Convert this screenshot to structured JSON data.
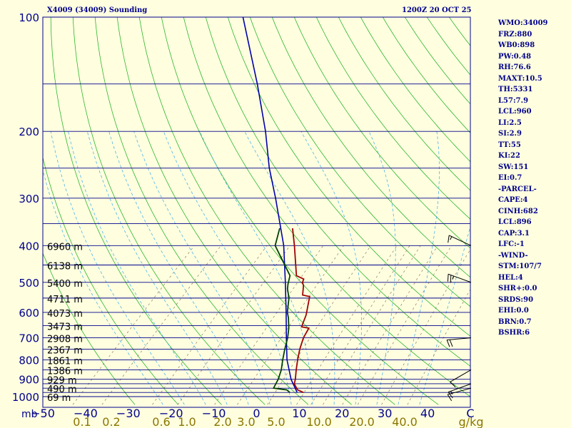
{
  "header": {
    "left_title": "X4009 (34009) Sounding",
    "right_title": "1200Z 20 OCT 25"
  },
  "indices": [
    "WMO:34009",
    "FRZ:880",
    "WB0:898",
    "PW:0.48",
    "RH:76.6",
    "MAXT:10.5",
    "TH:5331",
    "L57:7.9",
    "LCL:960",
    "LI:2.5",
    "SI:2.9",
    "TT:55",
    "KI:22",
    "SW:151",
    "EI:0.7",
    "-PARCEL-",
    "CAPE:4",
    "CINH:682",
    "LCL:896",
    "CAP:3.1",
    "LFC:-1",
    "-WIND-",
    "STM:107/7",
    "HEL:4",
    "SHR+:0.0",
    "SRDS:90",
    "EHI:0.0",
    "BRN:0.7",
    "BSHR:6"
  ],
  "colors": {
    "background": "#ffffe0",
    "frame": "#00008b",
    "isobar": "#00008b",
    "dry_adiabat": "#2db52d",
    "moist_adiabat": "#4fb4e6",
    "mixing_ratio": "#8c7a62",
    "temperature": "#a00000",
    "dewpoint": "#004000",
    "parcel": "#0000aa",
    "axis_text": "#00008b",
    "mixing_label": "#8b7500",
    "height_label": "#000000"
  },
  "chart_data": {
    "type": "skew-t",
    "title": "X4009 (34009) Sounding",
    "xlabel": "C",
    "pressure_unit": "mb",
    "mixing_ratio_unit": "g/kg",
    "ylim_mb": [
      1000,
      100
    ],
    "xlim_c": [
      -50,
      50
    ],
    "pressure_ticks": [
      100,
      200,
      300,
      400,
      500,
      600,
      700,
      800,
      900,
      1000
    ],
    "isobars_mb": [
      100,
      150,
      200,
      250,
      300,
      350,
      400,
      450,
      500,
      550,
      600,
      650,
      700,
      750,
      800,
      850,
      900,
      925,
      950,
      975,
      1000
    ],
    "temperature_ticks": [
      -50,
      -40,
      -30,
      -20,
      -10,
      0,
      10,
      20,
      30,
      40,
      "C"
    ],
    "mixing_ratio_ticks": [
      "0.1",
      "0.2",
      "0.6",
      "1.0",
      "2.0",
      "3.0",
      "5.0",
      "10.0",
      "20.0",
      "40.0",
      "g/kg"
    ],
    "heights": [
      {
        "p": 400,
        "label": "6960 m"
      },
      {
        "p": 450,
        "label": "6138 m"
      },
      {
        "p": 500,
        "label": "5400 m"
      },
      {
        "p": 550,
        "label": "4711 m"
      },
      {
        "p": 600,
        "label": "4073 m"
      },
      {
        "p": 650,
        "label": "3473 m"
      },
      {
        "p": 700,
        "label": "2908 m"
      },
      {
        "p": 750,
        "label": "2367 m"
      },
      {
        "p": 800,
        "label": "1861 m"
      },
      {
        "p": 850,
        "label": "1386 m"
      },
      {
        "p": 900,
        "label": "929 m"
      },
      {
        "p": 950,
        "label": "490 m"
      },
      {
        "p": 1000,
        "label": "69 m"
      }
    ],
    "temperature": [
      {
        "p": 975,
        "t": 10.0
      },
      {
        "p": 960,
        "t": 8.0
      },
      {
        "p": 925,
        "t": 5.8
      },
      {
        "p": 900,
        "t": 5.0
      },
      {
        "p": 850,
        "t": 3.0
      },
      {
        "p": 800,
        "t": 1.0
      },
      {
        "p": 750,
        "t": -1.0
      },
      {
        "p": 700,
        "t": -2.8
      },
      {
        "p": 660,
        "t": -3.8
      },
      {
        "p": 655,
        "t": -5.8
      },
      {
        "p": 610,
        "t": -7.5
      },
      {
        "p": 600,
        "t": -8.0
      },
      {
        "p": 545,
        "t": -11.0
      },
      {
        "p": 540,
        "t": -13.0
      },
      {
        "p": 510,
        "t": -15.0
      },
      {
        "p": 500,
        "t": -16.0
      },
      {
        "p": 490,
        "t": -16.5
      },
      {
        "p": 480,
        "t": -19.0
      },
      {
        "p": 400,
        "t": -26.5
      },
      {
        "p": 360,
        "t": -31.0
      }
    ],
    "dewpoint": [
      {
        "p": 975,
        "t": 6.8
      },
      {
        "p": 960,
        "t": 5.5
      },
      {
        "p": 950,
        "t": 2.0
      },
      {
        "p": 900,
        "t": 1.0
      },
      {
        "p": 850,
        "t": -0.5
      },
      {
        "p": 800,
        "t": -2.5
      },
      {
        "p": 750,
        "t": -4.5
      },
      {
        "p": 700,
        "t": -6.5
      },
      {
        "p": 660,
        "t": -8.5
      },
      {
        "p": 620,
        "t": -11.0
      },
      {
        "p": 600,
        "t": -12.5
      },
      {
        "p": 550,
        "t": -15.5
      },
      {
        "p": 520,
        "t": -18.0
      },
      {
        "p": 505,
        "t": -19.0
      },
      {
        "p": 480,
        "t": -20.5
      },
      {
        "p": 400,
        "t": -31.0
      },
      {
        "p": 360,
        "t": -34.0
      }
    ],
    "parcel": [
      {
        "p": 975,
        "t": 8.5
      },
      {
        "p": 900,
        "t": 4.0
      },
      {
        "p": 800,
        "t": -1.5
      },
      {
        "p": 700,
        "t": -6.8
      },
      {
        "p": 600,
        "t": -12.8
      },
      {
        "p": 500,
        "t": -20.0
      },
      {
        "p": 400,
        "t": -29.0
      },
      {
        "p": 300,
        "t": -42.0
      },
      {
        "p": 250,
        "t": -50.5
      },
      {
        "p": 200,
        "t": -60.0
      },
      {
        "p": 150,
        "t": -73.0
      },
      {
        "p": 100,
        "t": -92.0
      }
    ],
    "wind_barbs": [
      {
        "p": 400,
        "dir": 295,
        "speed_kt": 15
      },
      {
        "p": 500,
        "dir": 290,
        "speed_kt": 25
      },
      {
        "p": 700,
        "dir": 265,
        "speed_kt": 20
      },
      {
        "p": 850,
        "dir": 240,
        "speed_kt": 10
      },
      {
        "p": 925,
        "dir": 250,
        "speed_kt": 15
      },
      {
        "p": 950,
        "dir": 255,
        "speed_kt": 10
      }
    ]
  }
}
